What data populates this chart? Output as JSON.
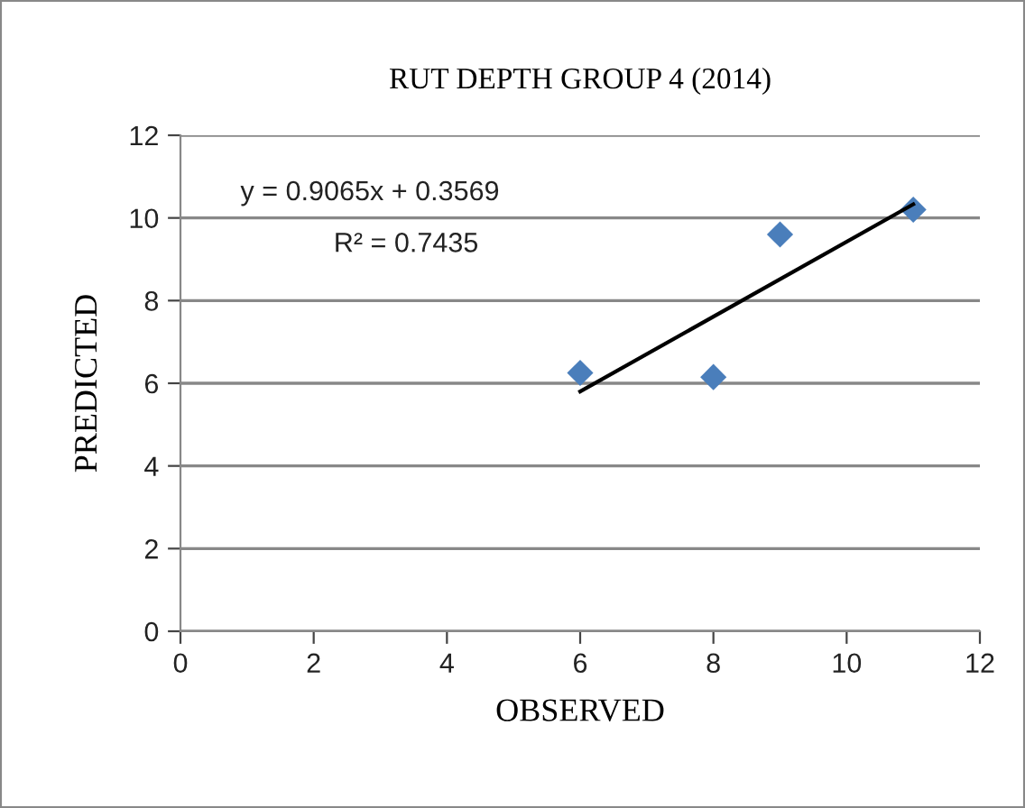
{
  "chart_data": {
    "type": "scatter",
    "title": "RUT DEPTH GROUP 4 (2014)",
    "xlabel": "OBSERVED",
    "ylabel": "PREDICTED",
    "x": [
      6,
      8,
      9,
      11
    ],
    "series": [
      {
        "color": "#4a7ebb",
        "marker": "diamond",
        "values": [
          6.25,
          6.15,
          9.6,
          10.2
        ]
      },
      {
        "type": "line",
        "color": "#000000",
        "marker": "none",
        "line_style": "solid",
        "x": [
          6,
          11
        ],
        "values": [
          5.8,
          10.33
        ]
      }
    ],
    "annotations": [
      "y = 0.9065x + 0.3569",
      "R² = 0.7435"
    ],
    "xlim": [
      0,
      12
    ],
    "xticks": [
      0,
      2,
      4,
      6,
      8,
      10,
      12
    ],
    "ylim": [
      0,
      12
    ],
    "yticks": [
      0,
      2,
      4,
      6,
      8,
      10,
      12
    ],
    "grid": "y",
    "legend": false
  }
}
